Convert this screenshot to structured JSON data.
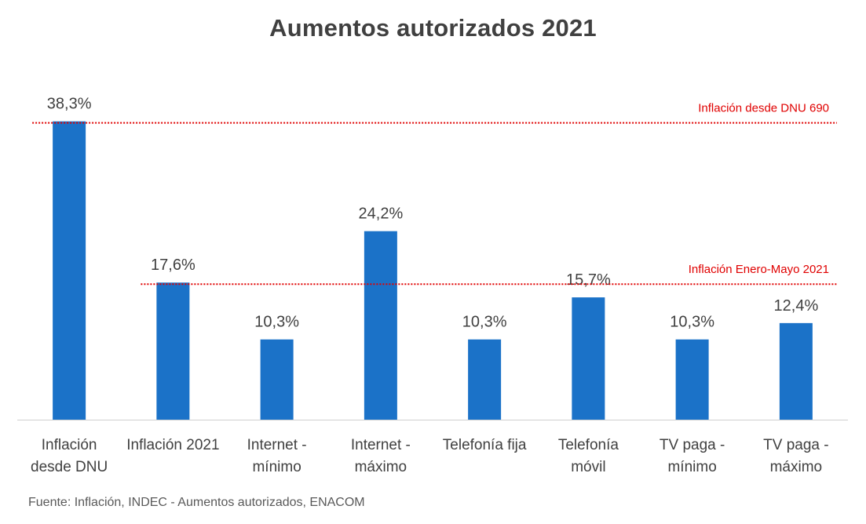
{
  "chart_data": {
    "type": "bar",
    "title": "Aumentos autorizados 2021",
    "categories": [
      [
        "Inflación",
        "desde DNU"
      ],
      [
        "Inflación 2021"
      ],
      [
        "Internet -",
        "mínimo"
      ],
      [
        "Internet -",
        "máximo"
      ],
      [
        "Telefonía fija"
      ],
      [
        "Telefonía",
        "móvil"
      ],
      [
        "TV paga -",
        "mínimo"
      ],
      [
        "TV paga -",
        "máximo"
      ]
    ],
    "values": [
      38.3,
      17.6,
      10.3,
      24.2,
      10.3,
      15.7,
      10.3,
      12.4
    ],
    "data_labels": [
      "38,3%",
      "17,6%",
      "10,3%",
      "24,2%",
      "10,3%",
      "15,7%",
      "10,3%",
      "12,4%"
    ],
    "ylim": [
      0,
      42
    ],
    "bar_color": "#1b72c8",
    "reference_lines": [
      {
        "label": "Inflación desde DNU 690",
        "value": 38.3,
        "color": "#e00000",
        "from_category": 0
      },
      {
        "label": "Inflación Enero-Mayo 2021",
        "value": 17.6,
        "color": "#e00000",
        "from_category": 1
      }
    ],
    "xlabel": "",
    "ylabel": "",
    "grid": false,
    "legend": "none"
  },
  "source": "Fuente: Inflación, INDEC - Aumentos autorizados, ENACOM"
}
